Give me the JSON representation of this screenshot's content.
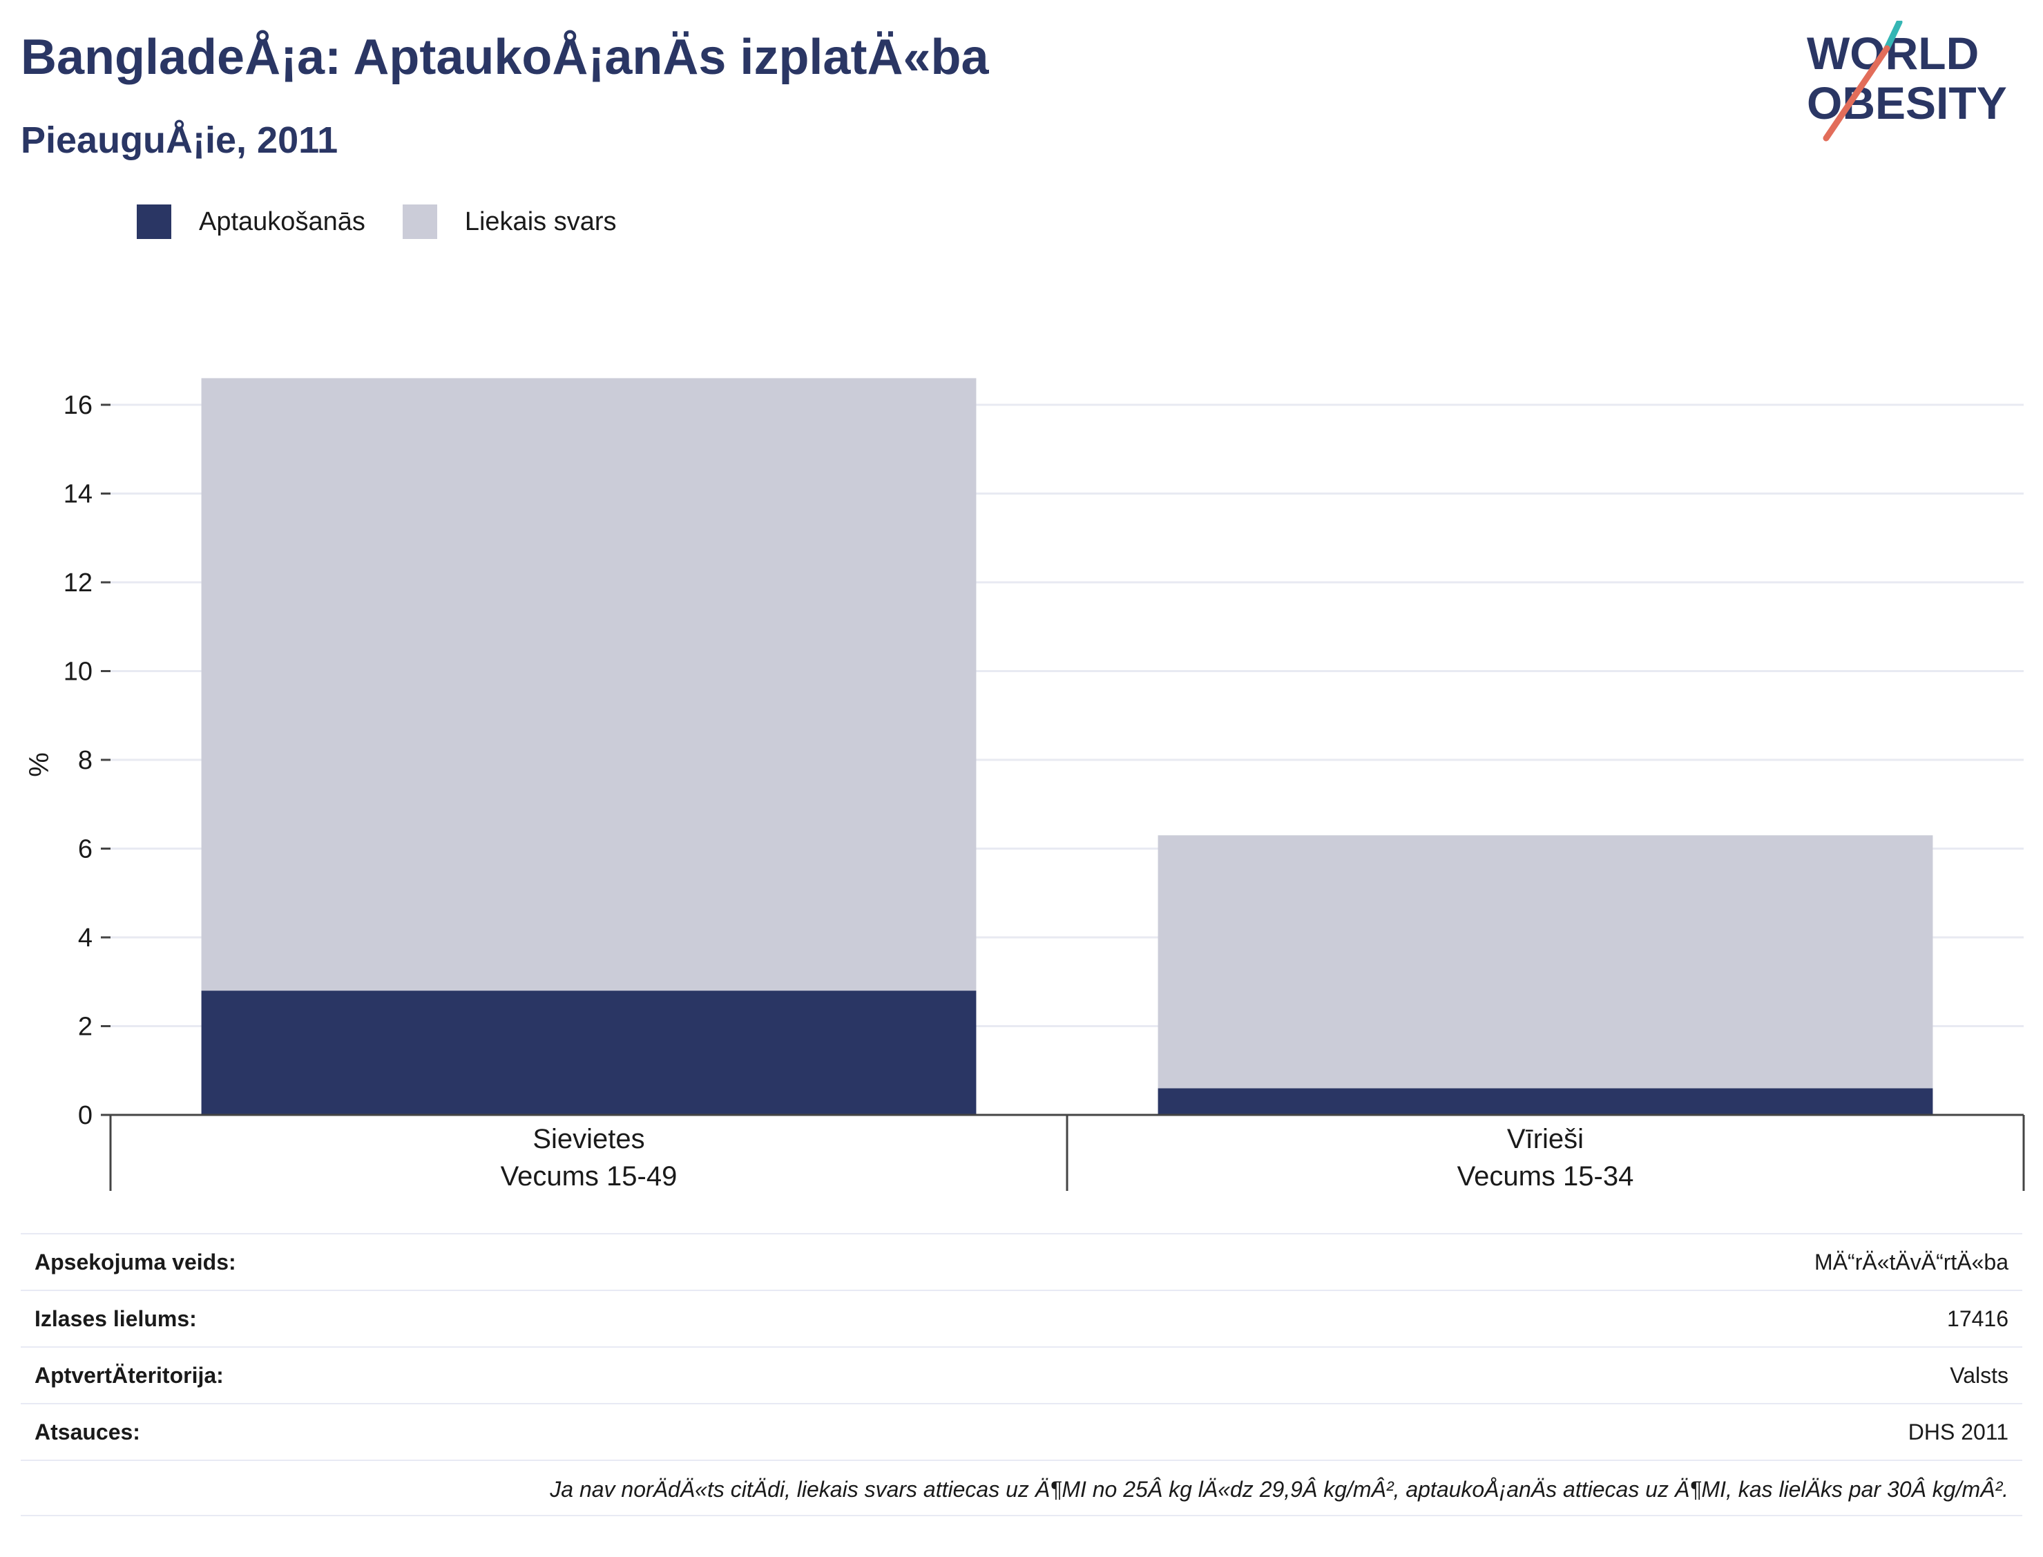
{
  "header": {
    "title": "BangladeÅ¡a: AptaukoÅ¡anÄs izplatÄ«ba",
    "subtitle": "PieauguÅ¡ie, 2011"
  },
  "logo": {
    "line1": "WORLD",
    "line2": "OBESITY"
  },
  "colors": {
    "obesity": "#2a3664",
    "overweight": "#cbccd8",
    "title": "#2a3664",
    "grid": "#e8eaf2",
    "axis": "#444444"
  },
  "chart_data": {
    "type": "bar",
    "stacked": true,
    "categories": [
      {
        "line1": "Sievietes",
        "line2": "Vecums 15-49"
      },
      {
        "line1": "Vīrieši",
        "line2": "Vecums 15-34"
      }
    ],
    "series": [
      {
        "name": "Aptaukošanās",
        "values": [
          2.8,
          0.6
        ]
      },
      {
        "name": "Liekais svars",
        "values": [
          13.8,
          5.7
        ]
      }
    ],
    "ylabel": "%",
    "ylim": [
      0,
      16
    ],
    "yticks": [
      0,
      2,
      4,
      6,
      8,
      10,
      12,
      14,
      16
    ],
    "grid": true,
    "legend_position": "top-left"
  },
  "info_table": [
    {
      "label": "Apsekojuma veids:",
      "value": "MÄ“rÄ«tÄvÄ“rtÄ«ba"
    },
    {
      "label": "Izlases lielums:",
      "value": "17416"
    },
    {
      "label": "AptvertÄteritorija:",
      "value": "Valsts"
    },
    {
      "label": "Atsauces:",
      "value": "DHS 2011"
    }
  ],
  "note": "Ja nav norÄdÄ«ts citÄdi, liekais svars attiecas uz Ä¶MI no 25Â kg lÄ«dz 29,9Â kg/mÂ², aptaukoÅ¡anÄs attiecas uz Ä¶MI, kas lielÄks par 30Â kg/mÂ²."
}
